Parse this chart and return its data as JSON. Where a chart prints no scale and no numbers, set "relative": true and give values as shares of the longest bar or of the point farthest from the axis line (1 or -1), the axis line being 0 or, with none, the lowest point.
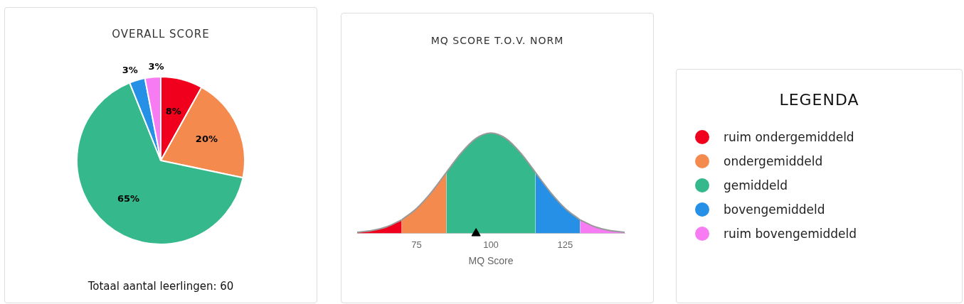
{
  "chart_data": [
    {
      "type": "pie",
      "title": "OVERALL SCORE",
      "categories": [
        "ruim ondergemiddeld",
        "ondergemiddeld",
        "gemiddeld",
        "bovengemiddeld",
        "ruim bovengemiddeld"
      ],
      "values": [
        8,
        20,
        65,
        3,
        3
      ],
      "value_labels": [
        "8%",
        "20%",
        "65%",
        "3%",
        "3%"
      ],
      "colors": [
        "#f0001c",
        "#f58a4f",
        "#35b88c",
        "#268fe6",
        "#f77cf4"
      ],
      "legend": "right",
      "legend_title": "LEGENDA",
      "annotations": [
        "Totaal aantal leerlingen: 60"
      ]
    },
    {
      "type": "area",
      "title": "MQ SCORE T.O.V. NORM",
      "xlabel": "MQ Score",
      "xlim": [
        55,
        145
      ],
      "xticks": [
        75,
        100,
        125
      ],
      "relative": true,
      "series": [
        {
          "color": "#f0001c",
          "x": [
            55,
            60,
            65,
            70
          ],
          "values": [
            0.011,
            0.029,
            0.066,
            0.135
          ]
        },
        {
          "color": "#f58a4f",
          "x": [
            70,
            75,
            80,
            85
          ],
          "values": [
            0.135,
            0.249,
            0.411,
            0.607
          ]
        },
        {
          "color": "#35b88c",
          "x": [
            85,
            90,
            95,
            100,
            105,
            110,
            115
          ],
          "values": [
            0.607,
            0.801,
            0.946,
            1,
            0.946,
            0.801,
            0.607
          ]
        },
        {
          "color": "#268fe6",
          "x": [
            115,
            120,
            125,
            130
          ],
          "values": [
            0.607,
            0.411,
            0.249,
            0.135
          ]
        },
        {
          "color": "#f77cf4",
          "x": [
            130,
            135,
            140,
            145
          ],
          "values": [
            0.135,
            0.066,
            0.029,
            0.011
          ]
        },
        {
          "type": "scatter",
          "color": "#000000",
          "marker": "triangle",
          "x": [
            95
          ],
          "values": [
            0
          ]
        }
      ]
    }
  ]
}
